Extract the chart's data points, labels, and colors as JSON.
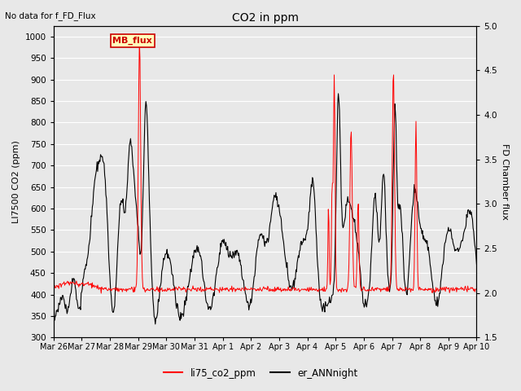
{
  "title": "CO2 in ppm",
  "top_left_text": "No data for f_FD_Flux",
  "ylabel_left": "LI7500 CO2 (ppm)",
  "ylabel_right": "FD Chamber flux",
  "ylim_left": [
    300,
    1025
  ],
  "ylim_right": [
    1.5,
    5.0
  ],
  "yticks_left": [
    300,
    350,
    400,
    450,
    500,
    550,
    600,
    650,
    700,
    750,
    800,
    850,
    900,
    950,
    1000
  ],
  "yticks_right": [
    1.5,
    2.0,
    2.5,
    3.0,
    3.5,
    4.0,
    4.5,
    5.0
  ],
  "xtick_labels": [
    "Mar 26",
    "Mar 27",
    "Mar 28",
    "Mar 29",
    "Mar 30",
    "Mar 31",
    "Apr 1",
    "Apr 2",
    "Apr 3",
    "Apr 4",
    "Apr 5",
    "Apr 6",
    "Apr 7",
    "Apr 8",
    "Apr 9",
    "Apr 10"
  ],
  "fig_bg_color": "#e8e8e8",
  "plot_bg_color": "#e8e8e8",
  "grid_color": "#ffffff",
  "red_color": "#ff0000",
  "black_color": "#000000",
  "legend_label_red": "li75_co2_ppm",
  "legend_label_black": "er_ANNnight",
  "mb_flux_label": "MB_flux",
  "mb_flux_bg": "#ffffbb",
  "mb_flux_border": "#cc0000"
}
